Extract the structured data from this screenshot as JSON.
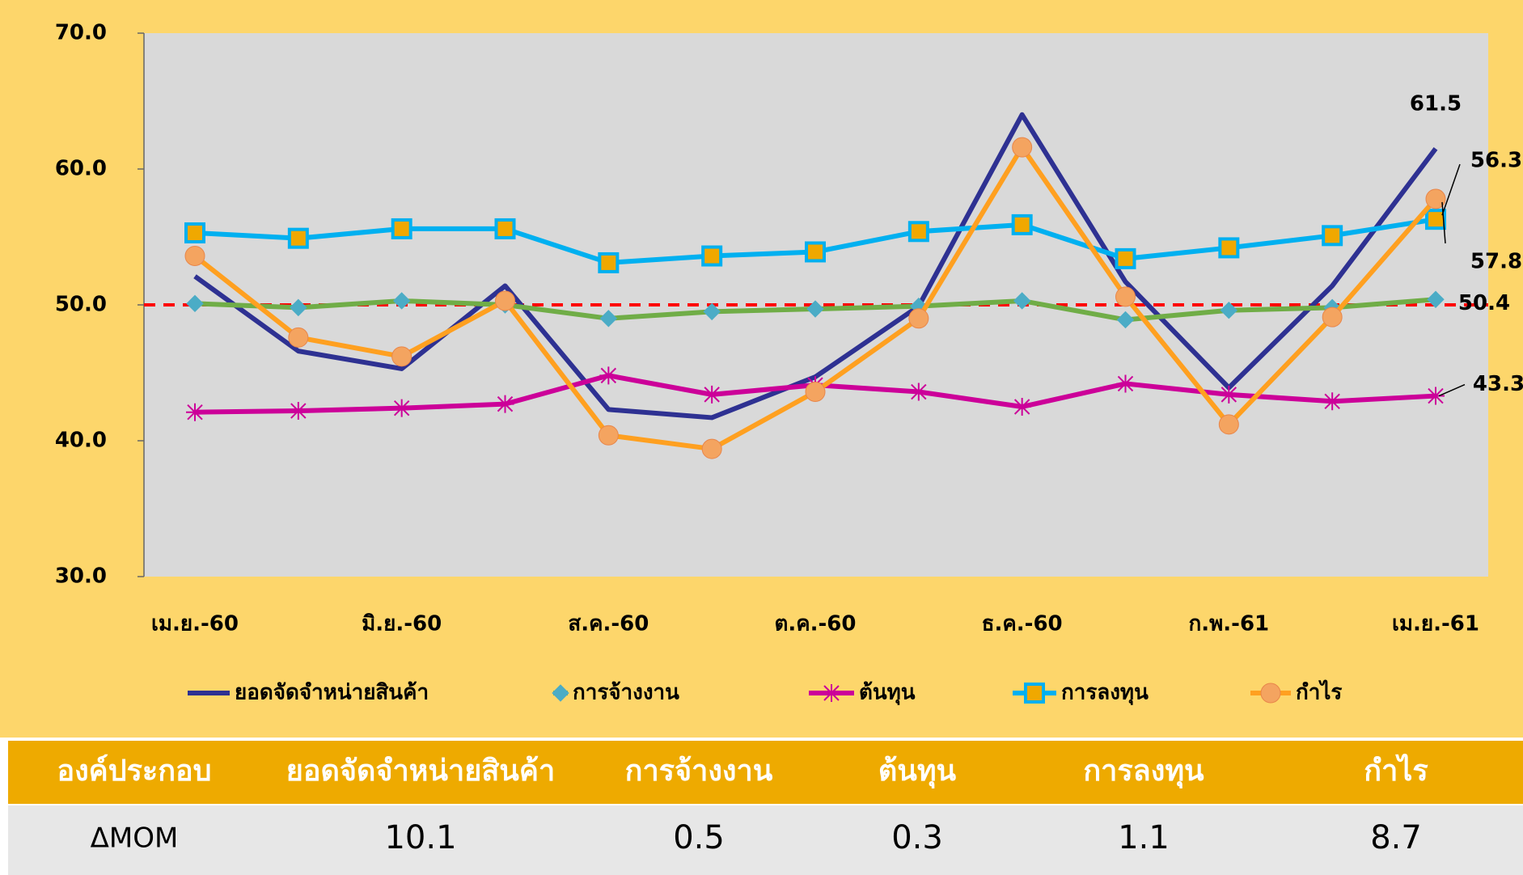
{
  "chart_data": {
    "type": "line",
    "categories": [
      "เม.ย.-60",
      null,
      "มิ.ย.-60",
      null,
      "ส.ค.-60",
      null,
      "ต.ค.-60",
      null,
      "ธ.ค.-60",
      null,
      "ก.พ.-61",
      null,
      "เม.ย.-61"
    ],
    "series": [
      {
        "name": "ยอดจัดจำหน่ายสินค้า",
        "color": "#2e3192",
        "marker": "none",
        "values": [
          52.1,
          46.6,
          45.3,
          51.4,
          42.3,
          41.7,
          44.7,
          49.9,
          64.0,
          51.7,
          43.9,
          51.4,
          61.5
        ]
      },
      {
        "name": "การจ้างงาน",
        "color": "#70ad47",
        "marker": "diamond",
        "values": [
          50.1,
          49.8,
          50.3,
          50.0,
          49.0,
          49.5,
          49.7,
          49.9,
          50.3,
          48.9,
          49.6,
          49.8,
          50.4
        ]
      },
      {
        "name": "ต้นทุน",
        "color": "#cc0099",
        "marker": "star",
        "values": [
          42.1,
          42.2,
          42.4,
          42.7,
          44.8,
          43.4,
          44.1,
          43.6,
          42.5,
          44.2,
          43.4,
          42.9,
          43.3
        ]
      },
      {
        "name": "การลงทุน",
        "color": "#00b0f0",
        "marker": "square",
        "values": [
          55.3,
          54.9,
          55.6,
          55.6,
          53.1,
          53.6,
          53.9,
          55.4,
          55.9,
          53.4,
          54.2,
          55.1,
          56.3
        ]
      },
      {
        "name": "กำไร",
        "color": "#ffa020",
        "marker": "circle",
        "values": [
          53.6,
          47.6,
          46.2,
          50.3,
          40.4,
          39.4,
          43.6,
          49.0,
          61.6,
          50.6,
          41.2,
          49.1,
          57.8
        ]
      }
    ],
    "ylim": [
      30,
      70
    ],
    "yticks": [
      {
        "value": 30,
        "label": "30.0"
      },
      {
        "value": 40,
        "label": "40.0"
      },
      {
        "value": 50,
        "label": "50.0"
      },
      {
        "value": 60,
        "label": "60.0"
      },
      {
        "value": 70,
        "label": "70.0"
      }
    ],
    "ref_line": 50,
    "ref_color": "#ff0000",
    "legend": "bottom"
  },
  "table": {
    "header": [
      "องค์ประกอบ",
      "ยอดจัดจำหน่ายสินค้า",
      "การจ้างงาน",
      "ต้นทุน",
      "การลงทุน",
      "กำไร"
    ],
    "rows": [
      [
        "ΔMOM",
        "10.1",
        "0.5",
        "0.3",
        "1.1",
        "8.7"
      ]
    ]
  }
}
